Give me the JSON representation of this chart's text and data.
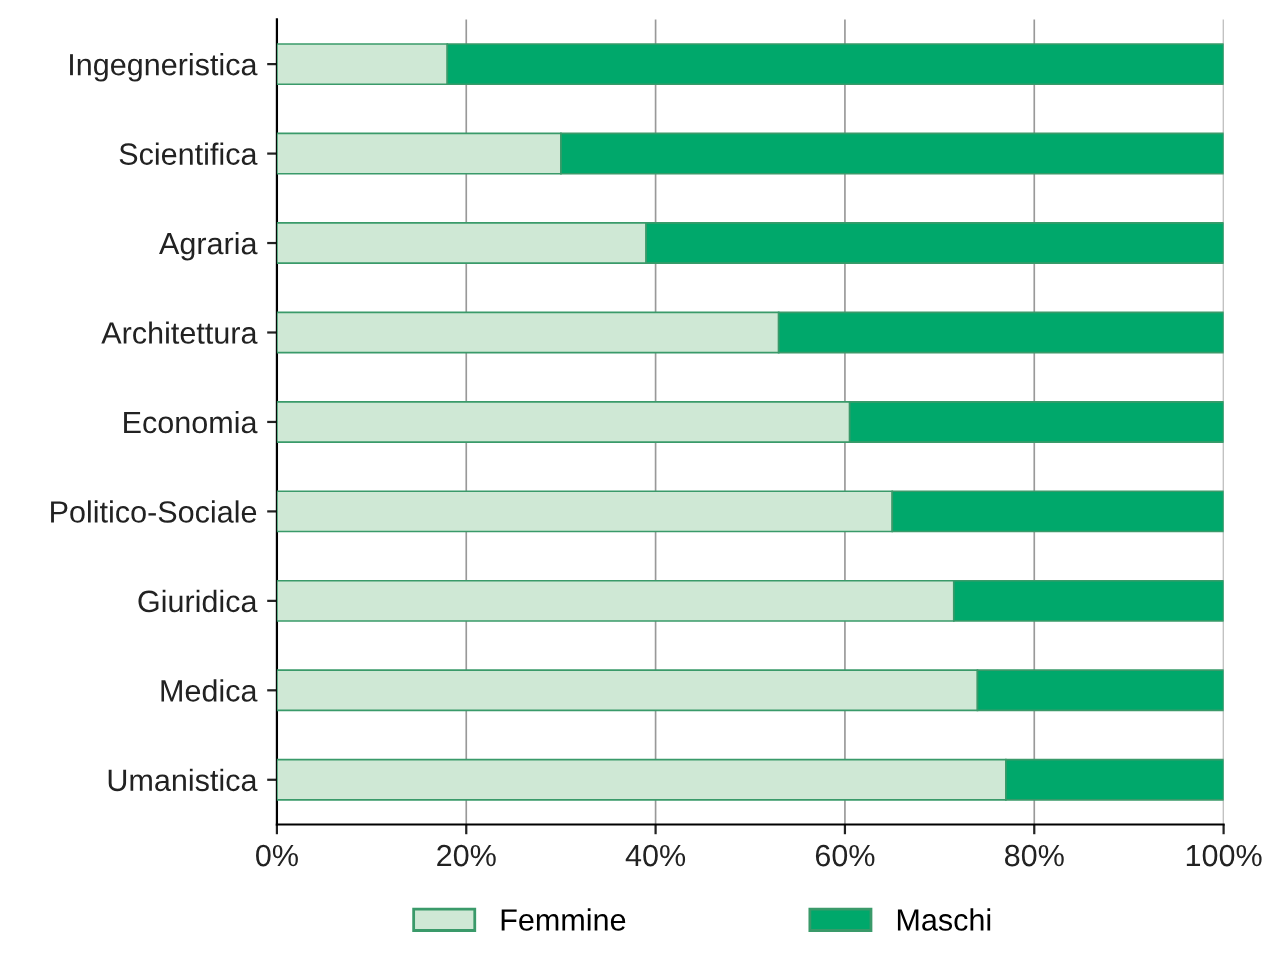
{
  "chart_data": {
    "type": "bar",
    "orientation": "horizontal",
    "stacked": true,
    "categories": [
      "Ingegneristica",
      "Scientifica",
      "Agraria",
      "Architettura",
      "Economia",
      "Politico-Sociale",
      "Giuridica",
      "Medica",
      "Umanistica"
    ],
    "series": [
      {
        "name": "Femmine",
        "color": "#cfe8d5",
        "values": [
          18,
          30,
          39,
          53,
          60.5,
          65,
          71.5,
          74,
          77
        ]
      },
      {
        "name": "Maschi",
        "color": "#00a86b",
        "values": [
          82,
          70,
          61,
          47,
          39.5,
          35,
          28.5,
          26,
          23
        ]
      }
    ],
    "xlim": [
      0,
      100
    ],
    "xticks": [
      {
        "value": 0,
        "label": "0%"
      },
      {
        "value": 20,
        "label": "20%"
      },
      {
        "value": 40,
        "label": "40%"
      },
      {
        "value": 60,
        "label": "60%"
      },
      {
        "value": 80,
        "label": "80%"
      },
      {
        "value": 100,
        "label": "100%"
      }
    ],
    "grid": "x",
    "legend": "bottom"
  }
}
